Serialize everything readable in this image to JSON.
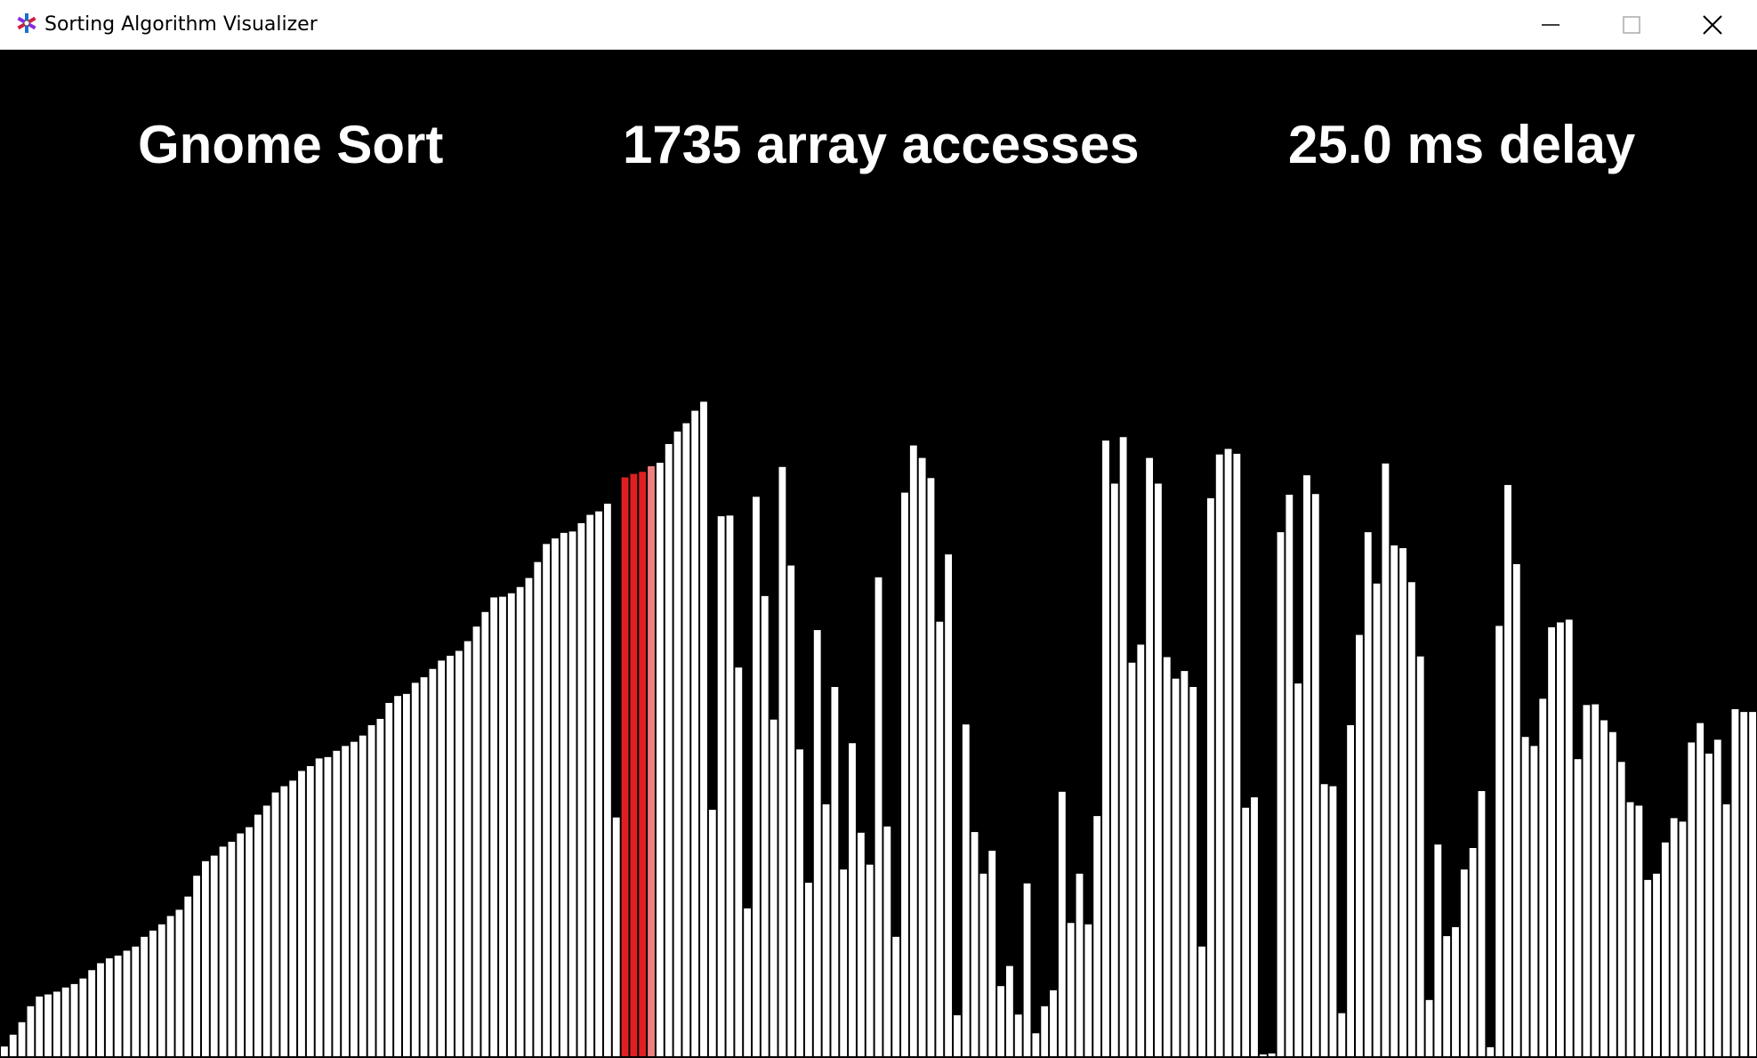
{
  "window": {
    "title": "Sorting Algorithm Visualizer",
    "icon": "app-icon",
    "controls": [
      "minimize-icon",
      "maximize-icon",
      "close-icon"
    ]
  },
  "hud": {
    "algorithm": "Gnome Sort",
    "accesses": "1735 array accesses",
    "delay": "25.0 ms delay"
  },
  "colors": {
    "background": "#000000",
    "bar": "#ffffff",
    "active": "#e02020",
    "compare": "#f08080"
  },
  "visualizer": {
    "max_value": 1000,
    "bar_count": 201,
    "highlight_active": [
      71,
      72,
      73
    ],
    "highlight_compare": [
      74
    ],
    "values": [
      14,
      31,
      49,
      72,
      86,
      89,
      93,
      99,
      104,
      112,
      124,
      134,
      141,
      145,
      152,
      158,
      172,
      181,
      190,
      202,
      211,
      230,
      260,
      281,
      289,
      302,
      309,
      321,
      330,
      348,
      361,
      380,
      389,
      397,
      411,
      418,
      429,
      431,
      440,
      447,
      453,
      462,
      477,
      486,
      509,
      519,
      522,
      538,
      546,
      558,
      570,
      577,
      584,
      598,
      619,
      640,
      661,
      662,
      667,
      676,
      689,
      712,
      738,
      746,
      754,
      756,
      768,
      780,
      785,
      796,
      344,
      834,
      839,
      842,
      850,
      855,
      882,
      900,
      912,
      930,
      943,
      355,
      778,
      779,
      560,
      213,
      806,
      663,
      485,
      849,
      707,
      442,
      250,
      614,
      363,
      532,
      269,
      451,
      322,
      276,
      690,
      331,
      172,
      812,
      880,
      862,
      833,
      626,
      723,
      59,
      478,
      323,
      263,
      296,
      101,
      130,
      60,
      249,
      33,
      72,
      95,
      381,
      192,
      263,
      190,
      346,
      887,
      825,
      892,
      567,
      593,
      862,
      825,
      575,
      544,
      555,
      532,
      158,
      804,
      867,
      875,
      868,
      358,
      373,
      1,
      4,
      755,
      809,
      537,
      837,
      810,
      392,
      389,
      62,
      477,
      607,
      755,
      681,
      854,
      736,
      732,
      683,
      576,
      81,
      305,
      173,
      186,
      269,
      300,
      382,
      13,
      620,
      823,
      709,
      460,
      447,
      515,
      618,
      625,
      629,
      428,
      506,
      507,
      484,
      467,
      424,
      366,
      361,
      254,
      263,
      308,
      343,
      338,
      452,
      480,
      436,
      456,
      363,
      500,
      496,
      496
    ]
  }
}
